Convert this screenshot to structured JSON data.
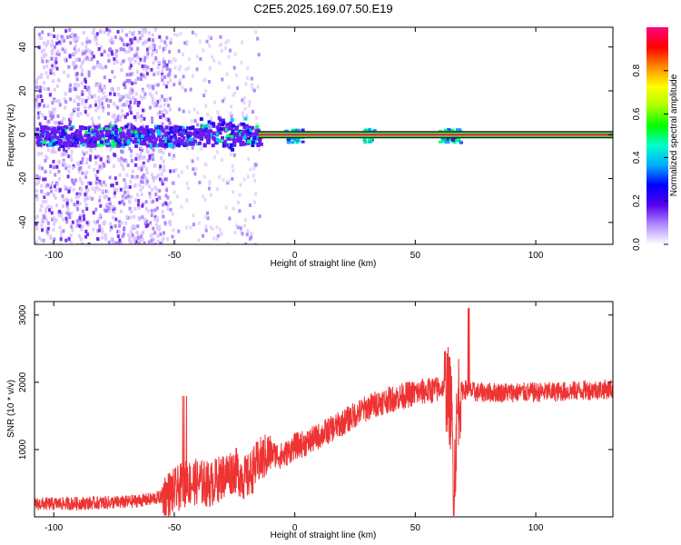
{
  "title": "C2E5.2025.169.07.50.E19",
  "chart_data": [
    {
      "type": "heatmap",
      "xlabel": "Height of straight line (km)",
      "ylabel": "Frequency (Hz)",
      "xlim": [
        -108,
        132
      ],
      "ylim": [
        -50,
        49
      ],
      "xticks": [
        "-100",
        "-50",
        "0",
        "50",
        "100"
      ],
      "yticks": [
        "40",
        "20",
        "0",
        "-20",
        "-40"
      ],
      "colorbar": {
        "label": "Normalized spectral amplitude",
        "range": [
          0.0,
          1.0
        ],
        "ticks": [
          "0.0",
          "0.2",
          "0.4",
          "0.6",
          "0.8"
        ],
        "colors": [
          "#ffffff",
          "#b08cff",
          "#5500ee",
          "#0000ff",
          "#00aaff",
          "#00ffcc",
          "#00ff00",
          "#aaff00",
          "#ffff00",
          "#ff8800",
          "#ff0000",
          "#ff0080"
        ]
      },
      "description_features": {
        "constant_line_freq_hz": 0,
        "noise_region_km": [
          -108,
          -52
        ],
        "sparse_noise_region_km": [
          -52,
          -15
        ],
        "dense_band_region_km": [
          -52,
          -14
        ],
        "packets_km": [
          -2,
          1,
          30,
          62,
          66
        ]
      }
    },
    {
      "type": "line",
      "xlabel": "Height of straight line (km)",
      "ylabel": "SNR (10 * v/v)",
      "xlim": [
        -108,
        132
      ],
      "ylim": [
        0,
        3200
      ],
      "xticks": [
        "-100",
        "-50",
        "0",
        "50",
        "100"
      ],
      "yticks": [
        "3000",
        "2000",
        "1000"
      ],
      "color": "#ee3333",
      "series": [
        {
          "x": [
            -108,
            -90,
            -70,
            -60,
            -55,
            -50,
            -45,
            -40,
            -35,
            -30,
            -25,
            -20,
            -15,
            -10,
            -5,
            0,
            5,
            10,
            15,
            20,
            25,
            30,
            35,
            40,
            45,
            50,
            55,
            60,
            63,
            65,
            66,
            67,
            68,
            70,
            72,
            75,
            80,
            90,
            100,
            110,
            120,
            132
          ],
          "y": [
            190,
            200,
            220,
            260,
            300,
            380,
            500,
            520,
            480,
            600,
            700,
            560,
            820,
            950,
            900,
            1050,
            1100,
            1200,
            1300,
            1400,
            1520,
            1620,
            1700,
            1750,
            1800,
            1840,
            1870,
            1900,
            1950,
            1600,
            400,
            1200,
            1800,
            1900,
            1880,
            1850,
            1850,
            1850,
            1850,
            1860,
            1880,
            1900
          ]
        }
      ]
    }
  ]
}
